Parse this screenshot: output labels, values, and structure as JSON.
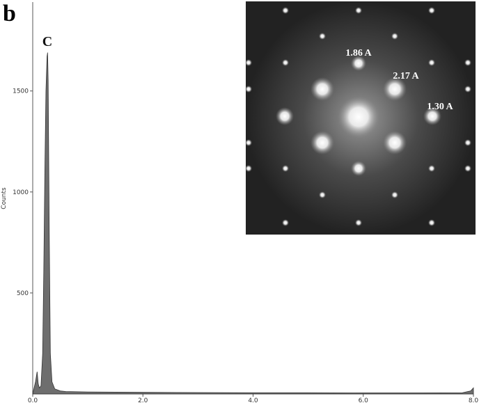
{
  "chart_data": {
    "type": "area",
    "panel_label": "b",
    "y_label": "Counts",
    "color": "#555555",
    "x": [
      0.0,
      0.05,
      0.08,
      0.1,
      0.12,
      0.15,
      0.18,
      0.2,
      0.22,
      0.24,
      0.26,
      0.27,
      0.28,
      0.3,
      0.32,
      0.35,
      0.4,
      0.5,
      0.6,
      1.0,
      2.0,
      3.0,
      4.0,
      5.0,
      6.0,
      7.0,
      7.8,
      7.95,
      8.0
    ],
    "values": [
      0,
      60,
      110,
      50,
      30,
      40,
      200,
      600,
      1100,
      1500,
      1670,
      1690,
      1550,
      800,
      200,
      60,
      25,
      15,
      12,
      10,
      8,
      7,
      6,
      6,
      5,
      5,
      6,
      15,
      30
    ],
    "xlim": [
      0,
      8
    ],
    "ylim": [
      0,
      1940
    ],
    "xticks": [
      {
        "value": 0,
        "label": "0.0"
      },
      {
        "value": 2,
        "label": "2.0"
      },
      {
        "value": 4,
        "label": "4.0"
      },
      {
        "value": 6,
        "label": "6.0"
      },
      {
        "value": 8,
        "label": "8.0"
      }
    ],
    "yticks": [
      500,
      1000,
      1500
    ],
    "annotations": [
      "C",
      "1.86 A",
      "2.17 A",
      "1.30 A"
    ]
  }
}
